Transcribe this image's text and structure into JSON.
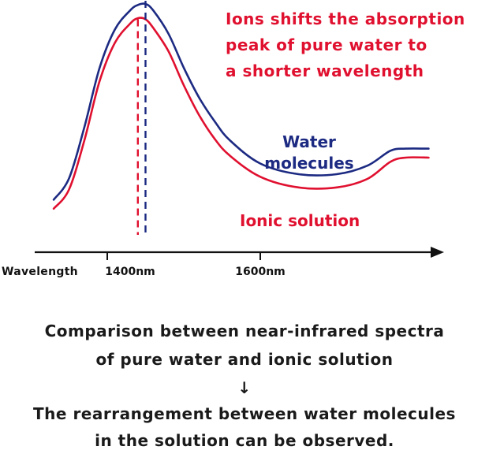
{
  "chart_data": {
    "type": "line",
    "xlabel": "Wavelength",
    "x_ticks": [
      {
        "value": 1400,
        "label": "1400nm"
      },
      {
        "value": 1600,
        "label": "1600nm"
      }
    ],
    "y_axis": "none",
    "peaks": {
      "water": 1450,
      "ionic": 1440
    },
    "series": [
      {
        "name": "Water\nmolecules",
        "label_lines": [
          "Water",
          "molecules"
        ],
        "color": "#1c2a82",
        "x": [
          1330,
          1350,
          1370,
          1390,
          1410,
          1430,
          1440,
          1450,
          1460,
          1480,
          1500,
          1520,
          1540,
          1560,
          1600,
          1650,
          1700,
          1740,
          1770,
          1790,
          1820
        ],
        "y": [
          8,
          18,
          42,
          70,
          88,
          97,
          99.5,
          100,
          97,
          86,
          70,
          56,
          45,
          36,
          25,
          20,
          20,
          24,
          31,
          32,
          32
        ]
      },
      {
        "name": "Ionic solution",
        "label_lines": [
          "Ionic solution"
        ],
        "color": "#e0102f",
        "x": [
          1330,
          1350,
          1370,
          1390,
          1410,
          1430,
          1440,
          1450,
          1460,
          1480,
          1500,
          1520,
          1540,
          1560,
          1600,
          1650,
          1700,
          1740,
          1770,
          1790,
          1820
        ],
        "y": [
          6,
          15,
          38,
          66,
          84,
          93,
          95.5,
          95,
          91,
          80,
          64,
          50,
          39,
          31,
          21,
          16,
          16,
          20,
          28,
          30,
          30
        ]
      }
    ],
    "annotation_lines": [
      "Ions shifts the absorption",
      "peak of pure water to",
      "a shorter wavelength"
    ]
  },
  "caption": {
    "line1": "Comparison between near-infrared spectra",
    "line2": "of pure water and ionic solution",
    "arrow": "↓",
    "line3": "The rearrangement between water molecules",
    "line4": "in the solution can be observed."
  },
  "colors": {
    "water": "#1c2a82",
    "ionic": "#e0102f",
    "axis": "#111111"
  }
}
